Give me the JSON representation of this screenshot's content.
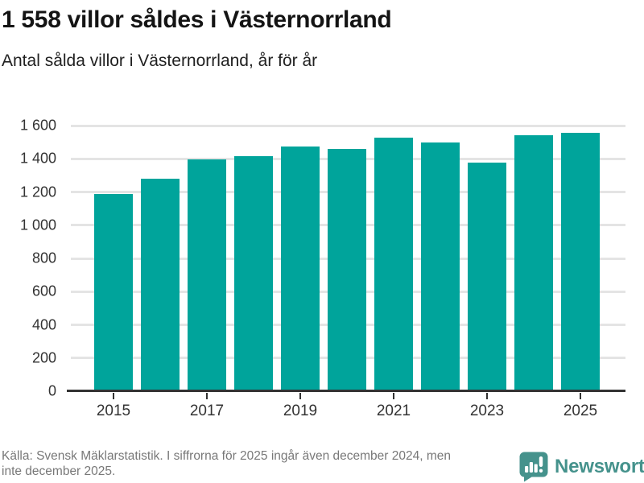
{
  "header": {
    "title": "1 558 villor såldes i Västernorrland",
    "subtitle": "Antal sålda villor i Västernorrland, år för år"
  },
  "chart_data": {
    "type": "bar",
    "title": "1 558 villor såldes i Västernorrland",
    "subtitle": "Antal sålda villor i Västernorrland, år för år",
    "categories": [
      "2015",
      "2016",
      "2017",
      "2018",
      "2019",
      "2020",
      "2021",
      "2022",
      "2023",
      "2024",
      "2025"
    ],
    "values": [
      1190,
      1279,
      1395,
      1417,
      1474,
      1460,
      1527,
      1498,
      1378,
      1543,
      1558
    ],
    "highlight_value": 1558,
    "xlabel": "",
    "ylabel": "",
    "ylim": [
      0,
      1600
    ],
    "ytick_step": 200,
    "ytick_labels": [
      "0",
      "200",
      "400",
      "600",
      "800",
      "1 000",
      "1 200",
      "1 400",
      "1 600"
    ],
    "xtick_labels": [
      "2015",
      "2017",
      "2019",
      "2021",
      "2023",
      "2025"
    ],
    "grid": "horizontal",
    "legend": "none",
    "bar_color": "#00a49b"
  },
  "footer": {
    "source_line1": "Källa: Svensk Mäklarstatistik. I siffrorna för 2025 ingår även december 2024, men",
    "source_line2": "inte december 2025.",
    "brand": "Newsworthy"
  },
  "colors": {
    "bar": "#00a49b",
    "brand": "#45928c",
    "grid": "#e4e4e4",
    "axis": "#333333",
    "muted_text": "#787878"
  }
}
